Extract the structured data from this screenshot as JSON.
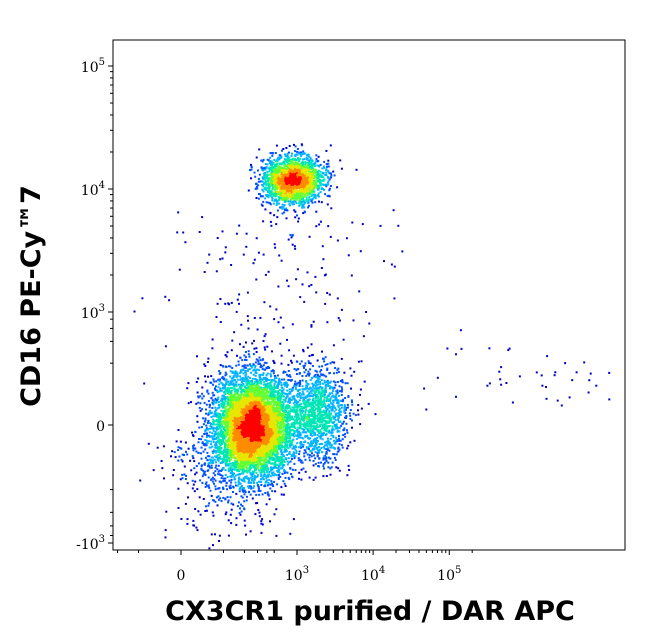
{
  "chart_data": {
    "type": "scatter",
    "subtype": "flow-cytometry-density-dot-plot",
    "xlabel": "CX3CR1 purified / DAR APC",
    "ylabel": "CD16 PE-Cy™7",
    "x_scale": "biexponential",
    "y_scale": "biexponential",
    "x_ticks": [
      {
        "value": 0,
        "base": "0",
        "exp": ""
      },
      {
        "value": 1000,
        "base": "10",
        "exp": "3"
      },
      {
        "value": 10000,
        "base": "10",
        "exp": "4"
      },
      {
        "value": 100000,
        "base": "10",
        "exp": "5"
      }
    ],
    "y_ticks": [
      {
        "value": -1000,
        "base": "-10",
        "exp": "3"
      },
      {
        "value": 0,
        "base": "0",
        "exp": ""
      },
      {
        "value": 1000,
        "base": "10",
        "exp": "3"
      },
      {
        "value": 10000,
        "base": "10",
        "exp": "4"
      },
      {
        "value": 100000,
        "base": "10",
        "exp": "5"
      }
    ],
    "xlim": [
      -400,
      230000
    ],
    "ylim": [
      -1200,
      230000
    ],
    "populations": [
      {
        "x_center": 250,
        "y_center": 0,
        "x_spread": 350,
        "y_spread": 90,
        "events": 6000
      },
      {
        "x_center": 1800,
        "y_center": 20,
        "x_spread": 1600,
        "y_spread": 110,
        "events": 1200
      },
      {
        "x_center": 850,
        "y_center": 12000,
        "x_spread": 700,
        "y_spread": 3500,
        "events": 2200
      }
    ],
    "grid": false,
    "legend": "none",
    "color_scale": [
      "#0000c8",
      "#0050ff",
      "#00b4ff",
      "#00e6b4",
      "#64ff32",
      "#e6e600",
      "#ff8c00",
      "#ff0000"
    ]
  }
}
